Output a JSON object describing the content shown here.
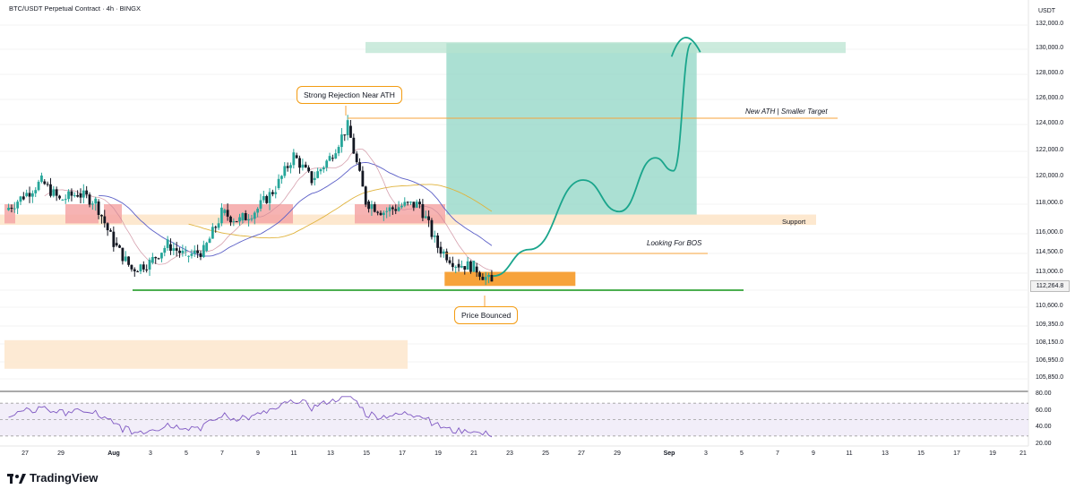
{
  "header": {
    "title": "BTC/USDT Perpetual Contract · 4h · BINGX",
    "currency": "USDT"
  },
  "brand": {
    "name": "TradingView"
  },
  "annotations": {
    "rejection": "Strong Rejection Near ATH",
    "ath_target": "New ATH | Smaller Target",
    "support": "Support",
    "bos": "Looking For BOS",
    "bounce": "Price Bounced"
  },
  "price_axis": {
    "labels": [
      "132,000.0",
      "130,000.0",
      "128,000.0",
      "126,000.0",
      "124,000.0",
      "122,000.0",
      "120,000.0",
      "118,000.0",
      "116,000.0",
      "114,500.0",
      "113,000.0",
      "111,800.0",
      "110,600.0",
      "109,350.0",
      "108,150.0",
      "106,950.0",
      "105,850.0"
    ],
    "current_price": "112,264.8"
  },
  "rsi_axis": {
    "labels": [
      "80.00",
      "60.00",
      "40.00",
      "20.00"
    ]
  },
  "time_axis": {
    "labels": [
      "27",
      "29",
      "Aug",
      "3",
      "5",
      "7",
      "9",
      "11",
      "13",
      "15",
      "17",
      "19",
      "21",
      "23",
      "25",
      "27",
      "29",
      "Sep",
      "3",
      "5",
      "7",
      "9",
      "11",
      "13",
      "15",
      "17",
      "19",
      "21"
    ]
  },
  "colors": {
    "up": "#26a69a",
    "down": "#131722",
    "green_line": "#4caf50",
    "orange": "#f7a33b",
    "target_zone": "#8fd5c4",
    "supply_zone": "#f4a6a6",
    "support_zone": "#fde8cf",
    "rsi": "#7e57c2"
  },
  "chart_data": {
    "type": "candlestick",
    "timeframe": "4h",
    "x_range": [
      "2025-07-26",
      "2025-09-21"
    ],
    "y_range": [
      105850,
      132000
    ],
    "close_series_approx": [
      {
        "date": "2025-07-26",
        "close": 117600
      },
      {
        "date": "2025-07-27",
        "close": 118600
      },
      {
        "date": "2025-07-28",
        "close": 119700
      },
      {
        "date": "2025-07-29",
        "close": 118300
      },
      {
        "date": "2025-07-30",
        "close": 118800
      },
      {
        "date": "2025-07-31",
        "close": 118200
      },
      {
        "date": "2025-08-01",
        "close": 115300
      },
      {
        "date": "2025-08-02",
        "close": 113300
      },
      {
        "date": "2025-08-03",
        "close": 113800
      },
      {
        "date": "2025-08-04",
        "close": 115200
      },
      {
        "date": "2025-08-05",
        "close": 114300
      },
      {
        "date": "2025-08-06",
        "close": 114700
      },
      {
        "date": "2025-08-07",
        "close": 117400
      },
      {
        "date": "2025-08-08",
        "close": 116900
      },
      {
        "date": "2025-08-09",
        "close": 117700
      },
      {
        "date": "2025-08-10",
        "close": 119200
      },
      {
        "date": "2025-08-11",
        "close": 121700
      },
      {
        "date": "2025-08-12",
        "close": 119800
      },
      {
        "date": "2025-08-13",
        "close": 121500
      },
      {
        "date": "2025-08-14",
        "close": 123900
      },
      {
        "date": "2025-08-15",
        "close": 118200
      },
      {
        "date": "2025-08-16",
        "close": 117500
      },
      {
        "date": "2025-08-17",
        "close": 117900
      },
      {
        "date": "2025-08-18",
        "close": 118000
      },
      {
        "date": "2025-08-19",
        "close": 115000
      },
      {
        "date": "2025-08-20",
        "close": 113700
      },
      {
        "date": "2025-08-21",
        "close": 113500
      },
      {
        "date": "2025-08-22",
        "close": 112265
      }
    ],
    "levels": [
      {
        "label": "New ATH | Smaller Target",
        "price": 124500
      },
      {
        "label": "Looking For BOS",
        "price": 114500
      },
      {
        "label": "",
        "price": 111900
      }
    ],
    "zones": [
      {
        "label": "Support",
        "low": 116600,
        "high": 117300
      },
      {
        "label": "target",
        "low": 117300,
        "high": 130500
      },
      {
        "label": "",
        "low": 112100,
        "high": 113100
      }
    ],
    "projection": [
      {
        "date": "2025-08-22",
        "price": 112800
      },
      {
        "date": "2025-08-24",
        "price": 114800
      },
      {
        "date": "2025-08-27",
        "price": 119800
      },
      {
        "date": "2025-08-29",
        "price": 117500
      },
      {
        "date": "2025-08-31",
        "price": 121500
      },
      {
        "date": "2025-09-01",
        "price": 120500
      },
      {
        "date": "2025-09-02",
        "price": 130500
      }
    ],
    "rsi_levels": [
      80,
      60,
      40,
      20
    ]
  }
}
